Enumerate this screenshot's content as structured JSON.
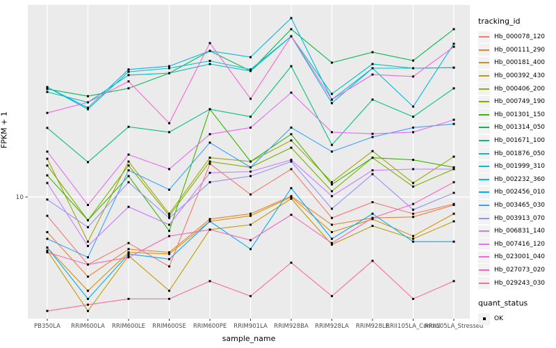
{
  "panel": {
    "bg_color": "#EBEBEB",
    "grid_color": "#FFFFFF",
    "axis_text_color": "#4D4D4D",
    "tick_color": "#333333",
    "point_color": "#000000"
  },
  "chart_data": {
    "type": "line",
    "title": "",
    "xlabel": "sample_name",
    "ylabel": "FPKM + 1",
    "y_scale": "log10",
    "y_tick_label": "10",
    "y_tick_value": 10,
    "grid": "major",
    "legend_position": "right",
    "point_shape": "black-square",
    "categories": [
      "PB350LA",
      "RRIM600LA",
      "RRIM600LE",
      "RRIM600SE",
      "RRIM600PE",
      "RRIM901LA",
      "RRIM928BA",
      "RRIM928LA",
      "RRIM928LE",
      "RRII105LA_Control",
      "RRII105LA_Stressed"
    ],
    "series": [
      {
        "name": "Hb_000078_120",
        "color": "#F8766D",
        "values": [
          8.0,
          4.5,
          5.8,
          4.4,
          14.8,
          10.3,
          13.9,
          7.8,
          9.4,
          8.2,
          9.2
        ]
      },
      {
        "name": "Hb_000111_290",
        "color": "#EA8331",
        "values": [
          6.6,
          3.9,
          5.4,
          5.2,
          7.7,
          8.2,
          10.1,
          7.2,
          7.8,
          7.9,
          9.1
        ]
      },
      {
        "name": "Hb_000181_400",
        "color": "#D89000",
        "values": [
          5.5,
          3.3,
          5.2,
          5.1,
          7.5,
          8.0,
          10.0,
          6.6,
          7.7,
          6.3,
          8.2
        ]
      },
      {
        "name": "Hb_000392_430",
        "color": "#C09B00",
        "values": [
          5.3,
          2.6,
          5.0,
          3.3,
          6.8,
          7.2,
          9.8,
          5.7,
          7.1,
          6.1,
          7.5
        ]
      },
      {
        "name": "Hb_000406_200",
        "color": "#A3A500",
        "values": [
          15.7,
          5.9,
          15.2,
          8.2,
          15.9,
          15.2,
          19.5,
          11.9,
          17.2,
          11.8,
          16.1
        ]
      },
      {
        "name": "Hb_000749_190",
        "color": "#7CAE00",
        "values": [
          14.5,
          7.6,
          14.5,
          8.0,
          15.2,
          14.2,
          17.9,
          10.7,
          15.9,
          11.3,
          13.9
        ]
      },
      {
        "name": "Hb_001301_150",
        "color": "#39B600",
        "values": [
          12.9,
          7.6,
          12.8,
          6.7,
          28.2,
          15.2,
          21.0,
          11.6,
          15.9,
          15.5,
          14.2
        ]
      },
      {
        "name": "Hb_001314_050",
        "color": "#00BB4E",
        "values": [
          35.8,
          32.9,
          36.1,
          43.2,
          56.2,
          44.3,
          72.6,
          48.9,
          55.3,
          50.1,
          72.6
        ]
      },
      {
        "name": "Hb_001671_100",
        "color": "#00C087",
        "values": [
          22.6,
          15.1,
          22.9,
          21.5,
          28.2,
          25.8,
          46.9,
          18.5,
          31.6,
          25.8,
          36.1
        ]
      },
      {
        "name": "Hb_001876_050",
        "color": "#00C0B2",
        "values": [
          34.6,
          30.6,
          42.2,
          43.2,
          48.1,
          44.3,
          66.8,
          33.8,
          48.1,
          45.8,
          46.1
        ]
      },
      {
        "name": "Hb_001999_310",
        "color": "#00BFD3",
        "values": [
          36.6,
          28.2,
          43.9,
          45.8,
          49.9,
          45.1,
          66.8,
          30.3,
          45.8,
          45.8,
          46.1
        ]
      },
      {
        "name": "Hb_002232_360",
        "color": "#00B8E7",
        "values": [
          36.6,
          28.7,
          45.1,
          46.9,
          56.2,
          52.2,
          82.8,
          31.6,
          45.8,
          29.1,
          61.1
        ]
      },
      {
        "name": "Hb_002456_010",
        "color": "#00ACFC",
        "values": [
          5.5,
          3.0,
          5.1,
          4.8,
          7.5,
          5.4,
          11.1,
          6.1,
          8.2,
          5.9,
          5.9
        ]
      },
      {
        "name": "Hb_003465_030",
        "color": "#35A2FF",
        "values": [
          6.1,
          4.9,
          13.7,
          10.9,
          19.0,
          14.2,
          22.7,
          17.1,
          20.3,
          22.7,
          23.7
        ]
      },
      {
        "name": "Hb_003913_070",
        "color": "#9590FF",
        "values": [
          9.7,
          7.0,
          11.9,
          7.8,
          11.9,
          12.8,
          15.2,
          8.7,
          13.1,
          8.6,
          10.5
        ]
      },
      {
        "name": "Hb_006831_140",
        "color": "#C77CFF",
        "values": [
          11.8,
          5.6,
          8.9,
          7.2,
          13.3,
          13.5,
          15.5,
          10.1,
          13.7,
          13.9,
          13.9
        ]
      },
      {
        "name": "Hb_007416_120",
        "color": "#E76BF3",
        "values": [
          17.1,
          9.1,
          16.5,
          13.9,
          21.0,
          22.7,
          34.3,
          21.5,
          21.1,
          21.5,
          24.9
        ]
      },
      {
        "name": "Hb_023001_040",
        "color": "#FA62DB",
        "values": [
          27.0,
          30.6,
          39.2,
          23.9,
          61.6,
          31.9,
          66.8,
          31.6,
          42.5,
          41.5,
          59.0
        ]
      },
      {
        "name": "Hb_027073_020",
        "color": "#FF62BC",
        "values": [
          5.2,
          4.5,
          4.9,
          6.3,
          6.8,
          6.0,
          8.1,
          5.8,
          7.8,
          9.2,
          11.9
        ]
      },
      {
        "name": "Hb_029243_030",
        "color": "#FF6A98",
        "values": [
          2.6,
          2.8,
          3.0,
          3.0,
          3.7,
          3.1,
          4.6,
          3.1,
          4.7,
          3.0,
          3.7
        ]
      }
    ],
    "legend": {
      "color_title": "tracking_id",
      "shape_title": "quant_status",
      "shape_items": [
        {
          "label": "OK"
        }
      ]
    }
  }
}
